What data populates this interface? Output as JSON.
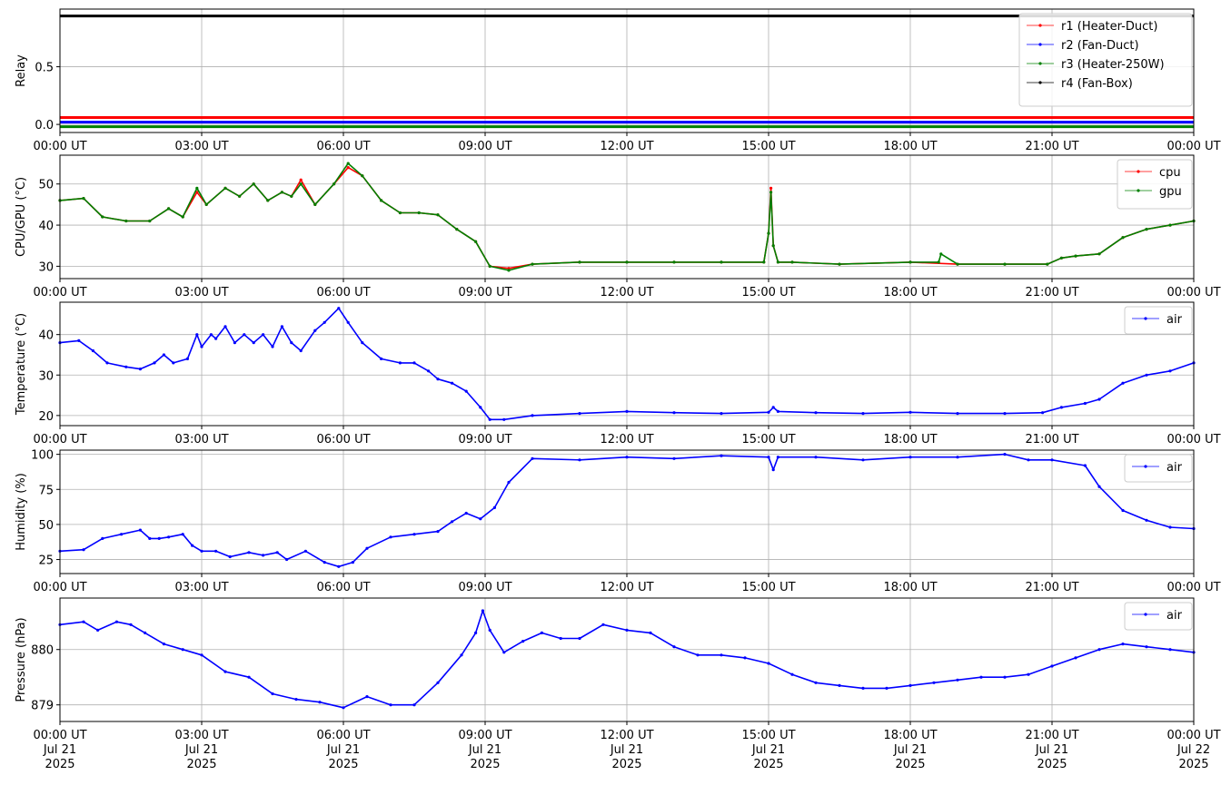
{
  "x_ticks": [
    "00:00 UT",
    "03:00 UT",
    "06:00 UT",
    "09:00 UT",
    "12:00 UT",
    "15:00 UT",
    "18:00 UT",
    "21:00 UT",
    "00:00 UT"
  ],
  "x_date_lines": [
    [
      "Jul 21",
      "2025"
    ],
    [
      "Jul 21",
      "2025"
    ],
    [
      "Jul 21",
      "2025"
    ],
    [
      "Jul 21",
      "2025"
    ],
    [
      "Jul 21",
      "2025"
    ],
    [
      "Jul 21",
      "2025"
    ],
    [
      "Jul 21",
      "2025"
    ],
    [
      "Jul 21",
      "2025"
    ],
    [
      "Jul 22",
      "2025"
    ]
  ],
  "chart_data": [
    {
      "type": "line",
      "ylabel": "Relay",
      "ylim": [
        -0.07,
        1.0
      ],
      "yticks": [
        0.0,
        0.5
      ],
      "ytick_labels": [
        "0.0",
        "0.5"
      ],
      "grid": true,
      "legend": "top-right",
      "x_hours": [
        0,
        24
      ],
      "series": [
        {
          "name": "r1 (Heater-Duct)",
          "color": "#ff0000",
          "x": [
            0,
            24
          ],
          "y": [
            0.06,
            0.06
          ]
        },
        {
          "name": "r2 (Fan-Duct)",
          "color": "#0000ff",
          "x": [
            0,
            24
          ],
          "y": [
            0.02,
            0.02
          ]
        },
        {
          "name": "r3 (Heater-250W)",
          "color": "#008000",
          "x": [
            0,
            24
          ],
          "y": [
            -0.02,
            -0.02
          ]
        },
        {
          "name": "r4 (Fan-Box)",
          "color": "#000000",
          "x": [
            0,
            24
          ],
          "y": [
            0.94,
            0.94
          ]
        }
      ]
    },
    {
      "type": "line",
      "ylabel": "CPU/GPU (°C)",
      "ylim": [
        27,
        57
      ],
      "yticks": [
        30,
        40,
        50
      ],
      "ytick_labels": [
        "30",
        "40",
        "50"
      ],
      "grid": true,
      "legend": "top-right",
      "series": [
        {
          "name": "cpu",
          "color": "#ff0000",
          "x": [
            0,
            0.5,
            0.9,
            1.4,
            1.9,
            2.3,
            2.6,
            2.9,
            3.1,
            3.5,
            3.8,
            4.1,
            4.4,
            4.7,
            4.9,
            5.1,
            5.4,
            5.8,
            6.1,
            6.4,
            6.8,
            7.2,
            7.6,
            8.0,
            8.4,
            8.8,
            9.1,
            9.5,
            10.0,
            11.0,
            12.0,
            13.0,
            14.0,
            14.9,
            15.0,
            15.05,
            15.1,
            15.2,
            15.5,
            16.5,
            18.0,
            19.0,
            20.0,
            20.9,
            21.2,
            21.5,
            22.0,
            22.5,
            23.0,
            23.5,
            24.0
          ],
          "y": [
            46,
            46.5,
            42,
            41,
            41,
            44,
            42,
            48,
            45,
            49,
            47,
            50,
            46,
            48,
            47,
            51,
            45,
            50,
            54,
            52,
            46,
            43,
            43,
            42.5,
            39,
            36,
            30,
            29.5,
            30.5,
            31,
            31,
            31,
            31,
            31,
            38,
            49,
            35,
            31,
            31,
            30.5,
            31,
            30.5,
            30.5,
            30.5,
            32,
            32.5,
            33,
            37,
            39,
            40,
            41
          ]
        },
        {
          "name": "gpu",
          "color": "#008000",
          "x": [
            0,
            0.5,
            0.9,
            1.4,
            1.9,
            2.3,
            2.6,
            2.9,
            3.1,
            3.5,
            3.8,
            4.1,
            4.4,
            4.7,
            4.9,
            5.1,
            5.4,
            5.8,
            6.1,
            6.4,
            6.8,
            7.2,
            7.6,
            8.0,
            8.4,
            8.8,
            9.1,
            9.5,
            10.0,
            11.0,
            12.0,
            13.0,
            14.0,
            14.9,
            15.0,
            15.05,
            15.1,
            15.2,
            15.5,
            16.5,
            18.0,
            18.6,
            18.65,
            19.0,
            20.0,
            20.9,
            21.2,
            21.5,
            22.0,
            22.5,
            23.0,
            23.5,
            24.0
          ],
          "y": [
            46,
            46.5,
            42,
            41,
            41,
            44,
            42,
            49,
            45,
            49,
            47,
            50,
            46,
            48,
            47,
            50,
            45,
            50,
            55,
            52,
            46,
            43,
            43,
            42.5,
            39,
            36,
            30,
            29,
            30.5,
            31,
            31,
            31,
            31,
            31,
            38,
            48,
            35,
            31,
            31,
            30.5,
            31,
            31,
            33,
            30.5,
            30.5,
            30.5,
            32,
            32.5,
            33,
            37,
            39,
            40,
            41
          ]
        }
      ]
    },
    {
      "type": "line",
      "ylabel": "Temperature (°C)",
      "ylim": [
        17.5,
        48
      ],
      "yticks": [
        20,
        30,
        40
      ],
      "ytick_labels": [
        "20",
        "30",
        "40"
      ],
      "grid": true,
      "legend": "top-right",
      "series": [
        {
          "name": "air",
          "color": "#0000ff",
          "x": [
            0,
            0.4,
            0.7,
            1.0,
            1.4,
            1.7,
            2.0,
            2.2,
            2.4,
            2.7,
            2.9,
            3.0,
            3.2,
            3.3,
            3.5,
            3.7,
            3.9,
            4.1,
            4.3,
            4.5,
            4.7,
            4.9,
            5.1,
            5.4,
            5.6,
            5.9,
            6.1,
            6.4,
            6.8,
            7.2,
            7.5,
            7.8,
            8.0,
            8.3,
            8.6,
            8.9,
            9.1,
            9.4,
            10.0,
            11.0,
            12.0,
            13.0,
            14.0,
            15.0,
            15.1,
            15.2,
            16.0,
            17.0,
            18.0,
            19.0,
            20.0,
            20.8,
            21.2,
            21.7,
            22.0,
            22.5,
            23.0,
            23.5,
            24.0
          ],
          "y": [
            38,
            38.5,
            36,
            33,
            32,
            31.5,
            33,
            35,
            33,
            34,
            40,
            37,
            40,
            39,
            42,
            38,
            40,
            38,
            40,
            37,
            42,
            38,
            36,
            41,
            43,
            46.5,
            43,
            38,
            34,
            33,
            33,
            31,
            29,
            28,
            26,
            22,
            19,
            19,
            20,
            20.5,
            21,
            20.7,
            20.5,
            20.8,
            22,
            21,
            20.7,
            20.5,
            20.8,
            20.5,
            20.5,
            20.7,
            22,
            23,
            24,
            28,
            30,
            31,
            33
          ]
        }
      ]
    },
    {
      "type": "line",
      "ylabel": "Humidity (%)",
      "ylim": [
        15,
        103
      ],
      "yticks": [
        25,
        50,
        75,
        100
      ],
      "ytick_labels": [
        "25",
        "50",
        "75",
        "100"
      ],
      "grid": true,
      "legend": "top-right",
      "series": [
        {
          "name": "air",
          "color": "#0000ff",
          "x": [
            0,
            0.5,
            0.9,
            1.3,
            1.7,
            1.9,
            2.1,
            2.3,
            2.6,
            2.8,
            3.0,
            3.3,
            3.6,
            4.0,
            4.3,
            4.6,
            4.8,
            5.2,
            5.6,
            5.9,
            6.2,
            6.5,
            7.0,
            7.5,
            8.0,
            8.3,
            8.6,
            8.9,
            9.2,
            9.5,
            10.0,
            11.0,
            12.0,
            13.0,
            14.0,
            15.0,
            15.1,
            15.2,
            16.0,
            17.0,
            18.0,
            19.0,
            20.0,
            20.5,
            21.0,
            21.7,
            22.0,
            22.5,
            23.0,
            23.5,
            24.0
          ],
          "y": [
            31,
            32,
            40,
            43,
            46,
            40,
            40,
            41,
            43,
            35,
            31,
            31,
            27,
            30,
            28,
            30,
            25,
            31,
            23,
            20,
            23,
            33,
            41,
            43,
            45,
            52,
            58,
            54,
            62,
            80,
            97,
            96,
            98,
            97,
            99,
            98,
            89,
            98,
            98,
            96,
            98,
            98,
            100,
            96,
            96,
            92,
            77,
            60,
            53,
            48,
            47
          ]
        }
      ]
    },
    {
      "type": "line",
      "ylabel": "Pressure (hPa)",
      "ylim": [
        878.7,
        880.93
      ],
      "yticks": [
        879,
        880
      ],
      "ytick_labels": [
        "879",
        "880"
      ],
      "grid": true,
      "legend": "top-right",
      "series": [
        {
          "name": "air",
          "color": "#0000ff",
          "x": [
            0,
            0.5,
            0.8,
            1.2,
            1.5,
            1.8,
            2.2,
            2.6,
            3.0,
            3.5,
            4.0,
            4.5,
            5.0,
            5.5,
            6.0,
            6.5,
            7.0,
            7.5,
            8.0,
            8.5,
            8.8,
            8.95,
            9.1,
            9.4,
            9.8,
            10.2,
            10.6,
            11.0,
            11.5,
            12.0,
            12.5,
            13.0,
            13.5,
            14.0,
            14.5,
            15.0,
            15.5,
            16.0,
            16.5,
            17.0,
            17.5,
            18.0,
            18.5,
            19.0,
            19.5,
            20.0,
            20.5,
            21.0,
            21.5,
            22.0,
            22.5,
            23.0,
            23.5,
            24.0
          ],
          "y": [
            880.45,
            880.5,
            880.35,
            880.5,
            880.45,
            880.3,
            880.1,
            880.0,
            879.9,
            879.6,
            879.5,
            879.2,
            879.1,
            879.05,
            878.95,
            879.15,
            879.0,
            879.0,
            879.4,
            879.9,
            880.3,
            880.7,
            880.35,
            879.95,
            880.15,
            880.3,
            880.2,
            880.2,
            880.45,
            880.35,
            880.3,
            880.05,
            879.9,
            879.9,
            879.85,
            879.75,
            879.55,
            879.4,
            879.35,
            879.3,
            879.3,
            879.35,
            879.4,
            879.45,
            879.5,
            879.5,
            879.55,
            879.7,
            879.85,
            880.0,
            880.1,
            880.05,
            880.0,
            879.95
          ]
        }
      ]
    }
  ]
}
